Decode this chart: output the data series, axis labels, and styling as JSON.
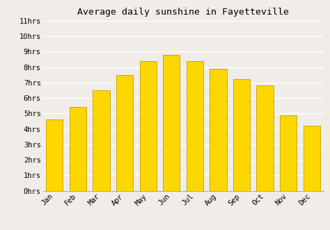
{
  "title": "Average daily sunshine in Fayetteville",
  "months": [
    "Jan",
    "Feb",
    "Mar",
    "Apr",
    "May",
    "Jun",
    "Jul",
    "Aug",
    "Sep",
    "Oct",
    "Nov",
    "Dec"
  ],
  "values": [
    4.6,
    5.4,
    6.5,
    7.5,
    8.4,
    8.8,
    8.4,
    7.9,
    7.2,
    6.8,
    4.9,
    4.2
  ],
  "bar_color": "#FFD700",
  "bar_edge_color": "#C8A800",
  "bar_edge_width": 0.7,
  "ylim": [
    0,
    11
  ],
  "yticks": [
    0,
    1,
    2,
    3,
    4,
    5,
    6,
    7,
    8,
    9,
    10,
    11
  ],
  "ytick_labels": [
    "0hrs",
    "1hrs",
    "2hrs",
    "3hrs",
    "4hrs",
    "5hrs",
    "6hrs",
    "7hrs",
    "8hrs",
    "9hrs",
    "10hrs",
    "11hrs"
  ],
  "background_color": "#f0ede8",
  "plot_bg_color": "#f0ede8",
  "grid_color": "#ffffff",
  "title_fontsize": 9.5,
  "tick_fontsize": 7.5,
  "bar_width": 0.72
}
